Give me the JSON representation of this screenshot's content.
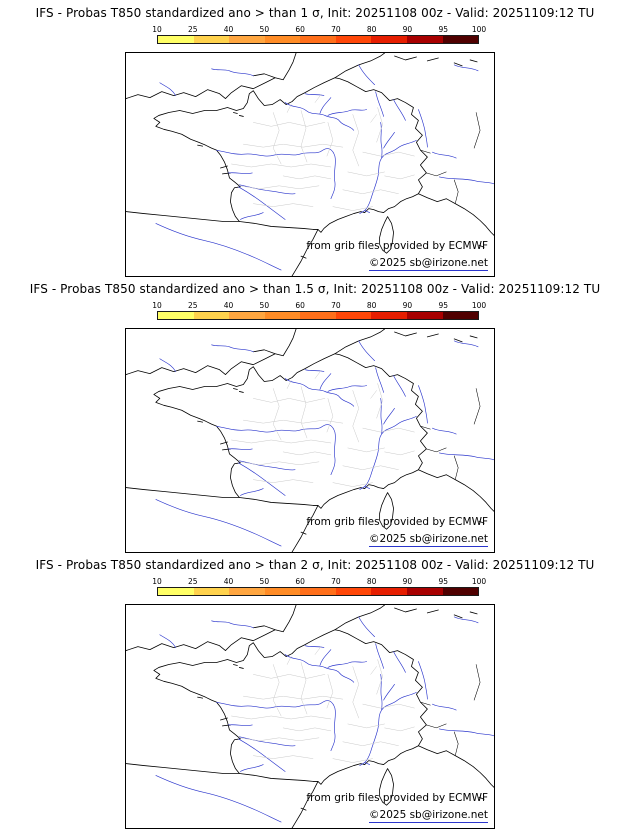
{
  "page": {
    "background": "#ffffff"
  },
  "colorbar": {
    "ticks": [
      "10",
      "25",
      "40",
      "50",
      "60",
      "70",
      "80",
      "90",
      "95",
      "100"
    ],
    "colors": [
      "#ffff66",
      "#ffd24d",
      "#ffa640",
      "#ff8c26",
      "#ff6f1a",
      "#ff4708",
      "#e61e00",
      "#a80000",
      "#500000"
    ]
  },
  "map": {
    "region": "France",
    "colors": {
      "coastline": "#000000",
      "river": "#2a35cc",
      "department_border": "#c9c9c9"
    }
  },
  "panels": [
    {
      "title": "IFS - Probas T850  standardized ano > than 1 σ, Init: 20251108 00z - Valid: 20251109:12 TU",
      "threshold_sigma": "1",
      "attribution_line1": "from grib files provided by ECMWF",
      "attribution_line2": "©2025 sb@irizone.net"
    },
    {
      "title": "IFS - Probas T850  standardized ano > than 1.5 σ, Init: 20251108 00z - Valid: 20251109:12 TU",
      "threshold_sigma": "1.5",
      "attribution_line1": "from grib files provided by ECMWF",
      "attribution_line2": "©2025 sb@irizone.net"
    },
    {
      "title": "IFS - Probas T850  standardized ano > than 2 σ, Init: 20251108 00z - Valid: 20251109:12 TU",
      "threshold_sigma": "2",
      "attribution_line1": "from grib files provided by ECMWF",
      "attribution_line2": "©2025 sb@irizone.net"
    }
  ]
}
